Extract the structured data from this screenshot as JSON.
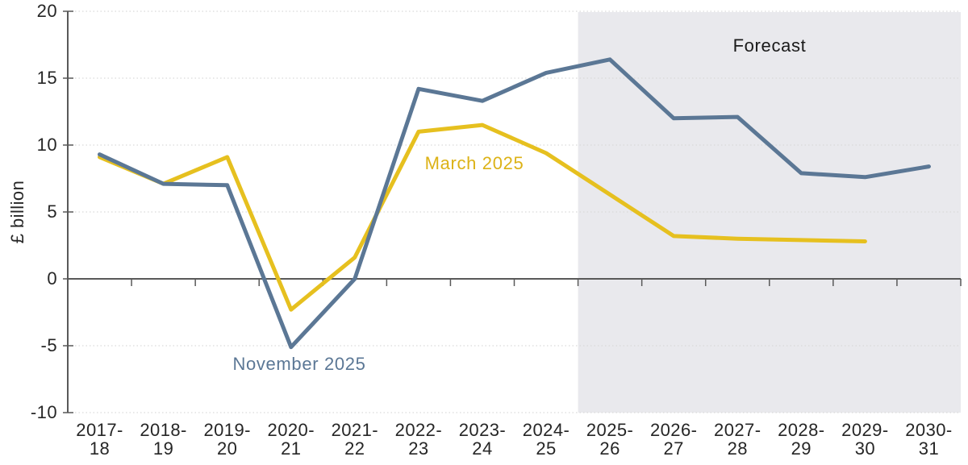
{
  "chart_data": {
    "type": "line",
    "title": "",
    "xlabel": "",
    "ylabel": "£ billion",
    "ylim": [
      -10,
      20
    ],
    "y_ticks": [
      20,
      15,
      10,
      5,
      0,
      -5,
      -10
    ],
    "grid": "horizontal-dotted",
    "legend_position": "inline-annotations",
    "categories": [
      "2017-18",
      "2018-19",
      "2019-20",
      "2020-21",
      "2021-22",
      "2022-23",
      "2023-24",
      "2024-25",
      "2025-26",
      "2026-27",
      "2027-28",
      "2028-29",
      "2029-30",
      "2030-31"
    ],
    "series": [
      {
        "name": "November 2025",
        "color": "#5b7795",
        "values": [
          9.3,
          7.1,
          7.0,
          -5.1,
          0.0,
          14.2,
          13.3,
          15.4,
          16.4,
          12.0,
          12.1,
          7.9,
          7.6,
          8.4
        ]
      },
      {
        "name": "March 2025",
        "color": "#e6c01f",
        "values": [
          9.1,
          7.1,
          9.1,
          -2.3,
          1.6,
          11.0,
          11.5,
          9.4,
          6.3,
          3.2,
          3.0,
          2.9,
          2.8,
          null
        ]
      }
    ],
    "forecast": {
      "label": "Forecast",
      "starts_after": "2024-25",
      "shade_color": "#e9e9ed"
    },
    "axis_color": "#595959",
    "gridline_color": "#d9d9d9"
  }
}
